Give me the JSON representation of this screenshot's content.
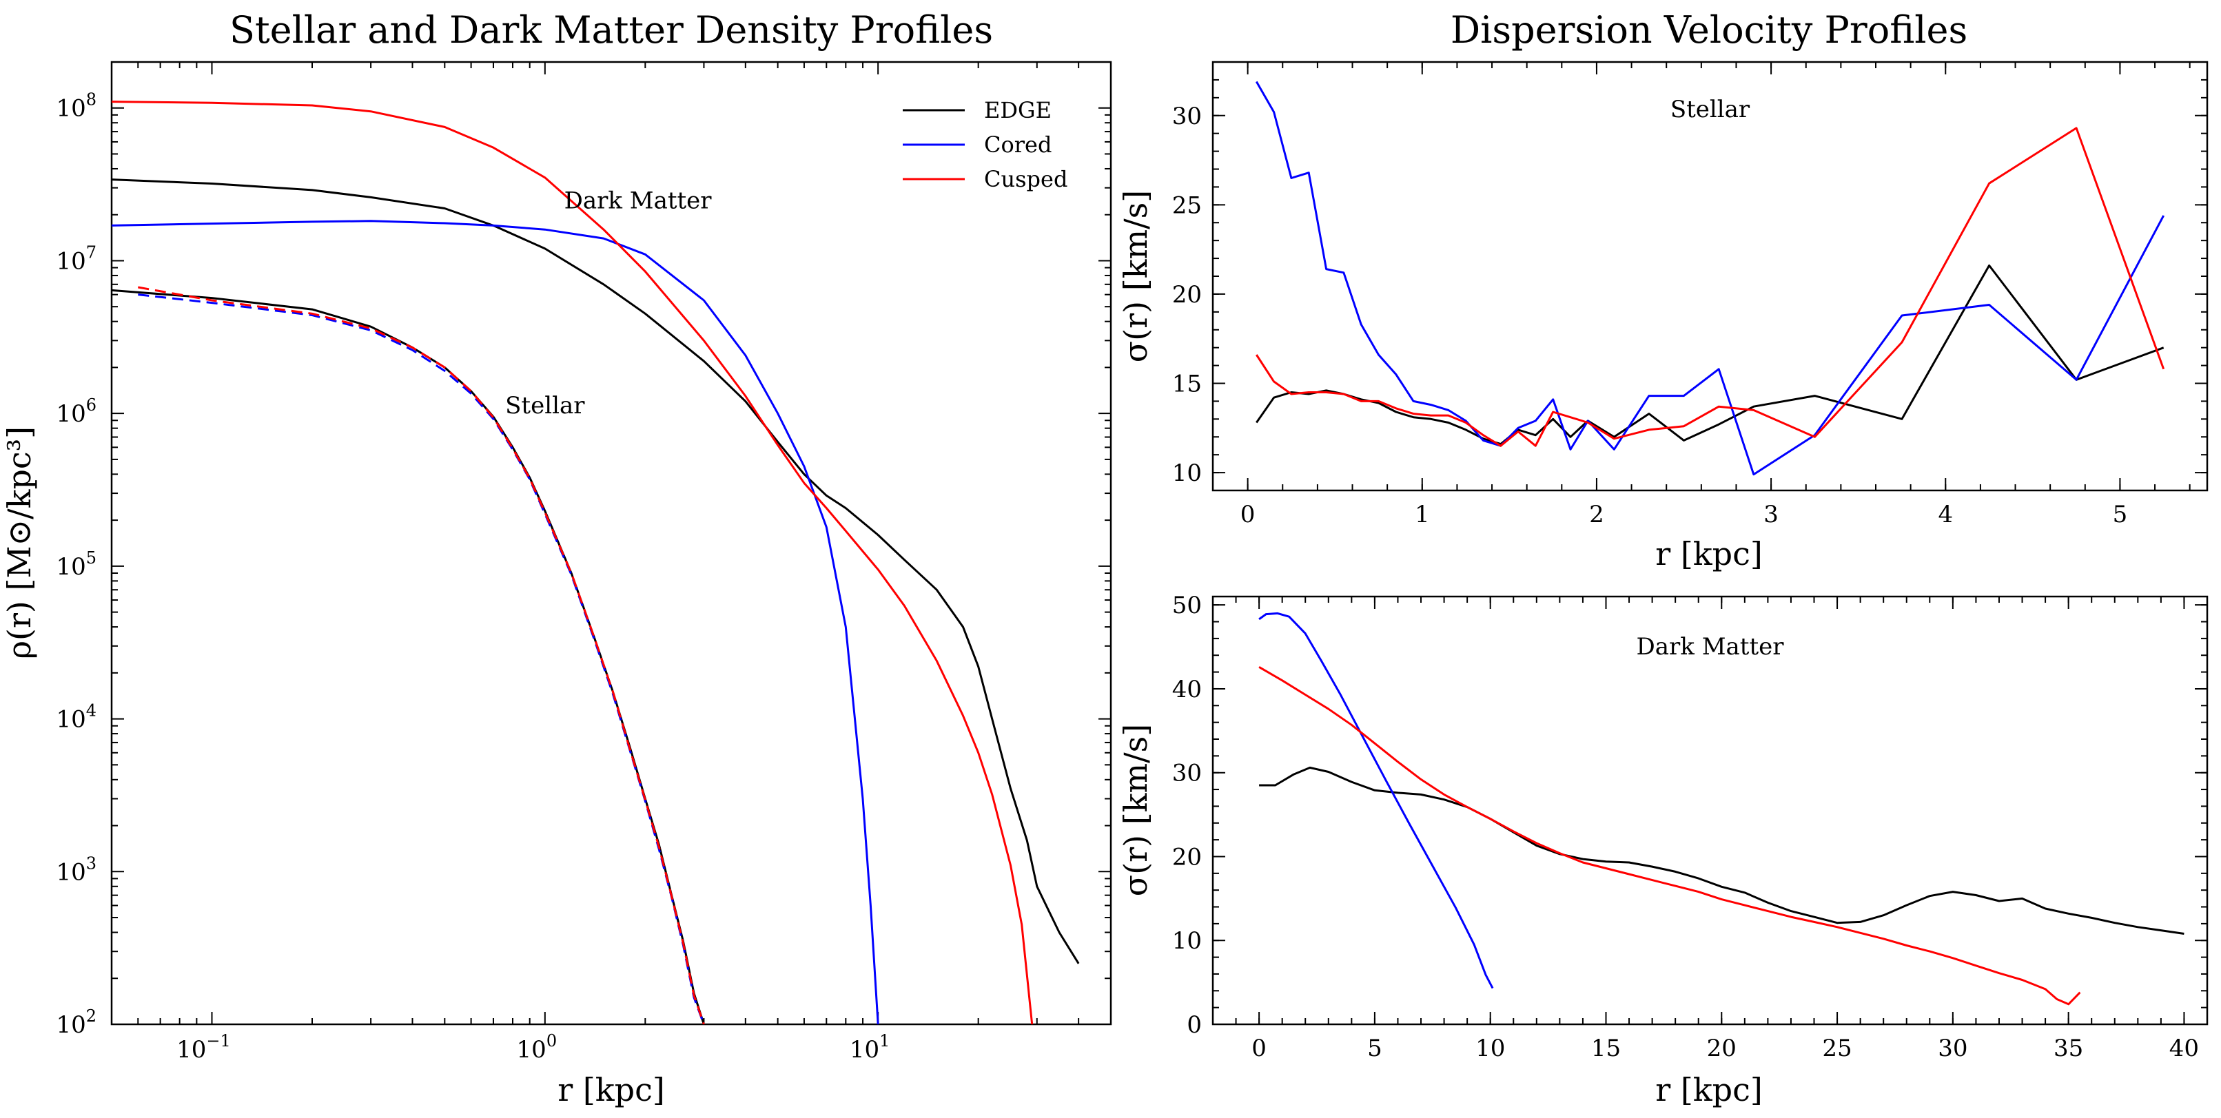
{
  "colors": {
    "EDGE": "#000000",
    "Cored": "#0000ff",
    "Cusped": "#ff0000"
  },
  "legend": {
    "position": "top-right",
    "entries": [
      "EDGE",
      "Cored",
      "Cusped"
    ]
  },
  "chart_data": [
    {
      "id": "density",
      "type": "line",
      "title": "Stellar and Dark Matter Density Profiles",
      "xlabel": "r [kpc]",
      "ylabel": "ρ(r) [M⊙/kpc³]",
      "xscale": "log",
      "yscale": "log",
      "xlim": [
        0.05,
        50
      ],
      "ylim": [
        100,
        200000000
      ],
      "xticks": [
        {
          "value": 0.1,
          "label": "10",
          "exp": "−1"
        },
        {
          "value": 1,
          "label": "10",
          "exp": "0"
        },
        {
          "value": 10,
          "label": "10",
          "exp": "1"
        }
      ],
      "yticks": [
        {
          "value": 100,
          "label": "10",
          "exp": "2"
        },
        {
          "value": 1000,
          "label": "10",
          "exp": "3"
        },
        {
          "value": 10000,
          "label": "10",
          "exp": "4"
        },
        {
          "value": 100000,
          "label": "10",
          "exp": "5"
        },
        {
          "value": 1000000,
          "label": "10",
          "exp": "6"
        },
        {
          "value": 10000000,
          "label": "10",
          "exp": "7"
        },
        {
          "value": 100000000,
          "label": "10",
          "exp": "8"
        }
      ],
      "annotations": [
        {
          "text": "Dark Matter",
          "x": 1.9,
          "y": 22000000
        },
        {
          "text": "Stellar",
          "x": 1.0,
          "y": 1000000
        }
      ],
      "series": [
        {
          "name": "EDGE",
          "component": "dark matter",
          "style": "solid",
          "x": [
            0.05,
            0.1,
            0.2,
            0.3,
            0.5,
            0.7,
            1.0,
            1.5,
            2.0,
            3.0,
            4.0,
            5.0,
            6.0,
            7.0,
            8.0,
            10.0,
            12.0,
            15.0,
            18.0,
            20.0,
            22.0,
            25.0,
            28.0,
            30.0,
            35.0,
            40.0
          ],
          "y": [
            34000000,
            32000000,
            29000000,
            26000000,
            22000000,
            17000000,
            12000000,
            7000000,
            4500000,
            2200000,
            1200000,
            650000,
            400000,
            290000,
            240000,
            160000,
            110000,
            70000,
            40000,
            22000,
            10000,
            3500,
            1600,
            800,
            400,
            250
          ]
        },
        {
          "name": "Cored",
          "component": "dark matter",
          "style": "solid",
          "x": [
            0.05,
            0.1,
            0.2,
            0.3,
            0.5,
            0.7,
            1.0,
            1.5,
            2.0,
            3.0,
            4.0,
            5.0,
            6.0,
            7.0,
            8.0,
            9.0,
            9.5,
            10.0
          ],
          "y": [
            17000000,
            17500000,
            18000000,
            18200000,
            17600000,
            17000000,
            16000000,
            14000000,
            11000000,
            5500000,
            2400000,
            1000000,
            450000,
            180000,
            40000,
            3000,
            600,
            100
          ]
        },
        {
          "name": "Cusped",
          "component": "dark matter",
          "style": "solid",
          "x": [
            0.05,
            0.1,
            0.2,
            0.3,
            0.5,
            0.7,
            1.0,
            1.5,
            2.0,
            3.0,
            4.0,
            5.0,
            6.0,
            7.0,
            8.0,
            10.0,
            12.0,
            15.0,
            18.0,
            20.0,
            22.0,
            25.0,
            27.0,
            29.0
          ],
          "y": [
            110000000,
            108000000,
            104000000,
            95000000,
            75000000,
            55000000,
            35000000,
            16000000,
            8500000,
            3000000,
            1300000,
            620000,
            350000,
            240000,
            170000,
            95000,
            55000,
            24000,
            10500,
            6000,
            3200,
            1100,
            450,
            100
          ]
        },
        {
          "name": "EDGE",
          "component": "stellar",
          "style": "solid",
          "x": [
            0.05,
            0.1,
            0.2,
            0.3,
            0.4,
            0.5,
            0.6,
            0.7,
            0.8,
            0.9,
            1.0,
            1.2,
            1.4,
            1.6,
            1.8,
            2.0,
            2.2,
            2.4,
            2.6,
            2.8,
            3.0
          ],
          "y": [
            6400000,
            5700000,
            4800000,
            3700000,
            2700000,
            2000000,
            1400000,
            950000,
            600000,
            380000,
            230000,
            90000,
            35000,
            15000,
            6500,
            3000,
            1500,
            700,
            350,
            160,
            100
          ]
        },
        {
          "name": "Cored",
          "component": "stellar",
          "style": "dashed",
          "x": [
            0.06,
            0.1,
            0.2,
            0.3,
            0.4,
            0.5,
            0.6,
            0.7,
            0.8,
            0.9,
            1.0,
            1.2,
            1.4,
            1.6,
            1.8,
            2.0,
            2.2,
            2.4,
            2.6,
            2.8,
            3.0
          ],
          "y": [
            6000000,
            5300000,
            4400000,
            3500000,
            2600000,
            1900000,
            1350000,
            920000,
            580000,
            370000,
            220000,
            88000,
            34000,
            14500,
            6200,
            2900,
            1400,
            680,
            330,
            150,
            100
          ]
        },
        {
          "name": "Cusped",
          "component": "stellar",
          "style": "dashed",
          "x": [
            0.06,
            0.1,
            0.2,
            0.3,
            0.4,
            0.5,
            0.6,
            0.7,
            0.8,
            0.9,
            1.0,
            1.2,
            1.4,
            1.6,
            1.8,
            2.0,
            2.2,
            2.4,
            2.6,
            2.8,
            3.0
          ],
          "y": [
            6700000,
            5500000,
            4500000,
            3600000,
            2700000,
            2000000,
            1400000,
            940000,
            590000,
            375000,
            225000,
            90000,
            35000,
            15000,
            6300,
            2950,
            1450,
            690,
            340,
            155,
            100
          ]
        }
      ]
    },
    {
      "id": "stellar-dispersion",
      "type": "line",
      "title": "Dispersion Velocity Profiles",
      "annotation": "Stellar",
      "xlabel": "r [kpc]",
      "ylabel": "σ(r) [km/s]",
      "xlim": [
        -0.2,
        5.5
      ],
      "ylim": [
        9,
        33
      ],
      "xticks": [
        0,
        1,
        2,
        3,
        4,
        5
      ],
      "yticks": [
        10,
        15,
        20,
        25,
        30
      ],
      "series": [
        {
          "name": "EDGE",
          "x": [
            0.05,
            0.15,
            0.25,
            0.35,
            0.45,
            0.55,
            0.65,
            0.75,
            0.85,
            0.95,
            1.05,
            1.15,
            1.25,
            1.35,
            1.45,
            1.55,
            1.65,
            1.75,
            1.85,
            1.95,
            2.1,
            2.3,
            2.5,
            2.7,
            2.9,
            3.25,
            3.75,
            4.25,
            4.75,
            5.25
          ],
          "y": [
            12.8,
            14.2,
            14.5,
            14.4,
            14.6,
            14.4,
            14.1,
            13.9,
            13.4,
            13.1,
            13.0,
            12.8,
            12.4,
            11.9,
            11.6,
            12.4,
            12.1,
            13.0,
            12.0,
            12.9,
            12.0,
            13.3,
            11.8,
            12.7,
            13.7,
            14.3,
            13.0,
            21.6,
            15.2,
            17.0
          ]
        },
        {
          "name": "Cored",
          "x": [
            0.05,
            0.15,
            0.25,
            0.35,
            0.45,
            0.55,
            0.65,
            0.75,
            0.85,
            0.95,
            1.05,
            1.15,
            1.25,
            1.35,
            1.45,
            1.55,
            1.65,
            1.75,
            1.85,
            1.95,
            2.1,
            2.3,
            2.5,
            2.7,
            2.9,
            3.25,
            3.75,
            4.25,
            4.75,
            5.25
          ],
          "y": [
            31.9,
            30.2,
            26.5,
            26.8,
            21.4,
            21.2,
            18.3,
            16.6,
            15.5,
            14.0,
            13.8,
            13.5,
            12.9,
            11.8,
            11.5,
            12.5,
            12.9,
            14.1,
            11.3,
            12.9,
            11.3,
            14.3,
            14.3,
            15.8,
            9.9,
            12.1,
            18.8,
            19.4,
            15.2,
            24.4
          ]
        },
        {
          "name": "Cusped",
          "x": [
            0.05,
            0.15,
            0.25,
            0.35,
            0.45,
            0.55,
            0.65,
            0.75,
            0.85,
            0.95,
            1.05,
            1.15,
            1.25,
            1.35,
            1.45,
            1.55,
            1.65,
            1.75,
            1.85,
            1.95,
            2.1,
            2.3,
            2.5,
            2.7,
            2.9,
            3.25,
            3.75,
            4.25,
            4.75,
            5.25
          ],
          "y": [
            16.6,
            15.1,
            14.4,
            14.5,
            14.5,
            14.4,
            14.0,
            14.0,
            13.6,
            13.3,
            13.2,
            13.2,
            12.8,
            12.1,
            11.5,
            12.3,
            11.5,
            13.4,
            13.1,
            12.8,
            11.9,
            12.4,
            12.6,
            13.7,
            13.5,
            12.0,
            17.3,
            26.2,
            29.3,
            15.8
          ]
        }
      ]
    },
    {
      "id": "dm-dispersion",
      "type": "line",
      "annotation": "Dark Matter",
      "xlabel": "r [kpc]",
      "ylabel": "σ(r) [km/s]",
      "xlim": [
        -2,
        41
      ],
      "ylim": [
        0,
        51
      ],
      "xticks": [
        0,
        5,
        10,
        15,
        20,
        25,
        30,
        35,
        40
      ],
      "yticks": [
        0,
        10,
        20,
        30,
        40,
        50
      ],
      "series": [
        {
          "name": "EDGE",
          "x": [
            0,
            0.7,
            1.5,
            2.2,
            3.0,
            4.0,
            5.0,
            6.0,
            7.0,
            8.0,
            9.0,
            10.0,
            11.0,
            12.0,
            13.0,
            14.0,
            15.0,
            16.0,
            17.0,
            18.0,
            19.0,
            20.0,
            21.0,
            22.0,
            23.0,
            24.0,
            25.0,
            26.0,
            27.0,
            28.0,
            29.0,
            30.0,
            31.0,
            32.0,
            33.0,
            34.0,
            35.0,
            36.0,
            37.0,
            38.0,
            39.0,
            40.0
          ],
          "y": [
            28.5,
            28.5,
            29.8,
            30.6,
            30.1,
            28.9,
            27.9,
            27.6,
            27.4,
            26.8,
            25.9,
            24.5,
            22.9,
            21.3,
            20.3,
            19.7,
            19.4,
            19.3,
            18.8,
            18.2,
            17.4,
            16.4,
            15.7,
            14.5,
            13.5,
            12.8,
            12.1,
            12.2,
            13.0,
            14.2,
            15.3,
            15.8,
            15.4,
            14.7,
            15.0,
            13.8,
            13.2,
            12.7,
            12.1,
            11.6,
            11.2,
            10.8
          ]
        },
        {
          "name": "Cored",
          "x": [
            0,
            0.3,
            0.8,
            1.3,
            2.0,
            2.7,
            3.5,
            4.5,
            5.5,
            6.5,
            7.5,
            8.5,
            9.3,
            9.8,
            10.1
          ],
          "y": [
            48.3,
            48.9,
            49.0,
            48.6,
            46.6,
            43.3,
            39.4,
            34.2,
            29.0,
            23.9,
            18.9,
            13.9,
            9.5,
            5.9,
            4.3
          ]
        },
        {
          "name": "Cusped",
          "x": [
            0,
            1,
            2,
            3,
            4,
            5,
            6,
            7,
            8,
            9,
            10,
            11,
            12,
            13,
            14,
            15,
            16,
            17,
            18,
            19,
            20,
            21,
            22,
            23,
            24,
            25,
            26,
            27,
            28,
            29,
            30,
            31,
            32,
            33,
            34,
            34.5,
            35,
            35.5
          ],
          "y": [
            42.6,
            41.0,
            39.3,
            37.6,
            35.7,
            33.5,
            31.3,
            29.2,
            27.4,
            25.9,
            24.5,
            23.0,
            21.6,
            20.4,
            19.3,
            18.6,
            17.9,
            17.2,
            16.5,
            15.8,
            14.9,
            14.2,
            13.5,
            12.8,
            12.2,
            11.6,
            10.9,
            10.2,
            9.4,
            8.7,
            7.9,
            7.0,
            6.1,
            5.3,
            4.2,
            3.0,
            2.4,
            3.8
          ]
        }
      ]
    }
  ]
}
